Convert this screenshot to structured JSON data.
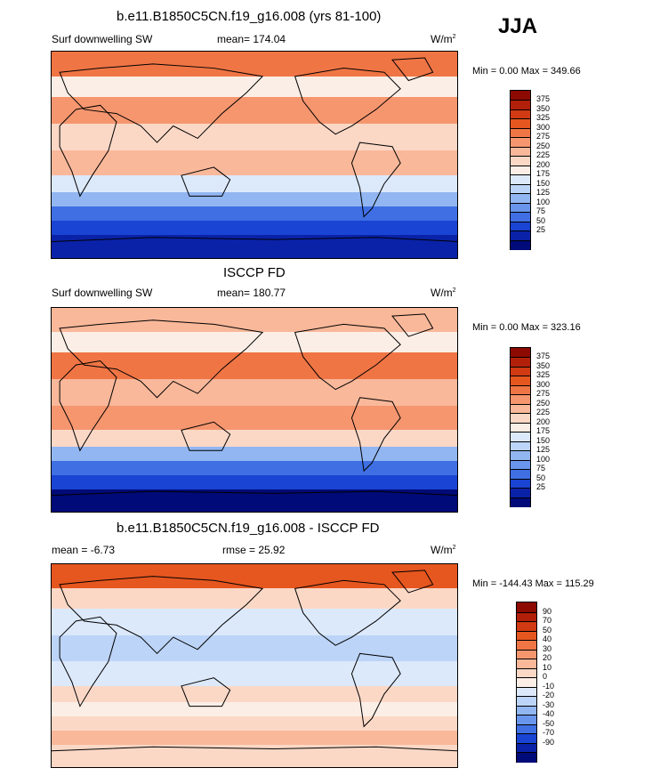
{
  "season": "JJA",
  "unit": {
    "base": "W/m",
    "exp": "2"
  },
  "panels": [
    {
      "title": "b.e11.B1850C5CN.f19_g16.008 (yrs 81-100)",
      "left_label": "Surf downwelling SW",
      "center_label": "mean= 174.04",
      "minmax": "Min =   0.00 Max = 349.66"
    },
    {
      "title": "ISCCP FD",
      "left_label": "Surf downwelling SW",
      "center_label": "mean= 180.77",
      "minmax": "Min =   0.00 Max = 323.16"
    },
    {
      "title": "b.e11.B1850C5CN.f19_g16.008 - ISCCP FD",
      "left_label": "mean =  -6.73",
      "center_label": "rmse =  25.92",
      "minmax": "Min = -144.43 Max = 115.29"
    }
  ],
  "colorbars": {
    "sw": {
      "labels": [
        "375",
        "350",
        "325",
        "300",
        "275",
        "250",
        "225",
        "200",
        "175",
        "150",
        "125",
        "100",
        "75",
        "50",
        "25"
      ],
      "colors": [
        "#8c0a00",
        "#b3200a",
        "#d13a12",
        "#e6561f",
        "#f07545",
        "#f6966f",
        "#f9b89a",
        "#fbd8c6",
        "#fbeee6",
        "#dce9fb",
        "#bcd4f7",
        "#92b6f1",
        "#6a95ec",
        "#3f6fe3",
        "#1a44d3",
        "#0a22a8",
        "#000a78"
      ]
    },
    "diff": {
      "labels": [
        "90",
        "70",
        "50",
        "40",
        "30",
        "20",
        "10",
        "0",
        "-10",
        "-20",
        "-30",
        "-40",
        "-50",
        "-70",
        "-90"
      ],
      "colors": [
        "#8c0a00",
        "#b3200a",
        "#d13a12",
        "#e6561f",
        "#f07545",
        "#f6966f",
        "#f9b89a",
        "#fbd8c6",
        "#fbeee6",
        "#dce9fb",
        "#bcd4f7",
        "#92b6f1",
        "#6a95ec",
        "#3f6fe3",
        "#1a44d3",
        "#0a22a8",
        "#000a78"
      ]
    }
  },
  "map_fields": {
    "model": [
      {
        "band": "60N-90N",
        "color": "#f07545"
      },
      {
        "band": "40N-60N",
        "color": "#fbeee6"
      },
      {
        "band": "20N-40N",
        "color": "#f6966f"
      },
      {
        "band": "0-20N",
        "color": "#fbd8c6"
      },
      {
        "band": "0-20S",
        "color": "#f9b89a"
      },
      {
        "band": "20S-35S",
        "color": "#dce9fb"
      },
      {
        "band": "35S-45S",
        "color": "#92b6f1"
      },
      {
        "band": "45S-55S",
        "color": "#3f6fe3"
      },
      {
        "band": "55S-65S",
        "color": "#1a44d3"
      },
      {
        "band": "65S-90S",
        "color": "#0a22a8"
      }
    ],
    "obs": [
      {
        "band": "60N-90N",
        "color": "#f9b89a"
      },
      {
        "band": "40N-60N",
        "color": "#fbeee6"
      },
      {
        "band": "20N-40N",
        "color": "#f07545"
      },
      {
        "band": "0-20N",
        "color": "#f9b89a"
      },
      {
        "band": "0-20S",
        "color": "#f6966f"
      },
      {
        "band": "20S-35S",
        "color": "#fbd8c6"
      },
      {
        "band": "35S-45S",
        "color": "#92b6f1"
      },
      {
        "band": "45S-55S",
        "color": "#3f6fe3"
      },
      {
        "band": "55S-65S",
        "color": "#1a44d3"
      },
      {
        "band": "65S-90S",
        "color": "#000a78"
      }
    ],
    "diff": [
      {
        "band": "60N-90N",
        "color": "#e6561f"
      },
      {
        "band": "40N-60N",
        "color": "#fbd8c6"
      },
      {
        "band": "20N-40N",
        "color": "#dce9fb"
      },
      {
        "band": "0-20N",
        "color": "#bcd4f7"
      },
      {
        "band": "0-20S",
        "color": "#dce9fb"
      },
      {
        "band": "20S-35S",
        "color": "#fbd8c6"
      },
      {
        "band": "35S-45S",
        "color": "#fbeee6"
      },
      {
        "band": "45S-55S",
        "color": "#fbd8c6"
      },
      {
        "band": "55S-65S",
        "color": "#f9b89a"
      },
      {
        "band": "65S-90S",
        "color": "#fbd8c6"
      }
    ]
  }
}
